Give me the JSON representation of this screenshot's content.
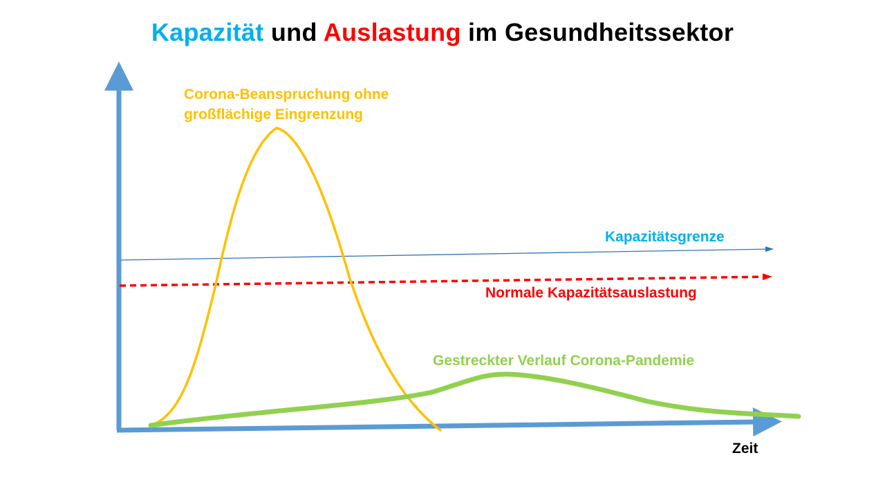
{
  "title": {
    "part1": "Kapazität",
    "part2": "und",
    "part3": "Auslastung",
    "part4": "im Gesundheitssektor"
  },
  "labels": {
    "corona_line1": "Corona-Beanspruchung ohne",
    "corona_line2": "großflächige Eingrenzung",
    "capacity_limit": "Kapazitätsgrenze",
    "normal_usage": "Normale Kapazitätsauslastung",
    "stretched": "Gestreckter Verlauf Corona-Pandemie",
    "x_axis": "Zeit"
  },
  "colors": {
    "axis": "#5b9bd5",
    "title_blue": "#00b0f0",
    "title_red": "#ff0000",
    "title_black": "#000000",
    "yellow_curve": "#ffc000",
    "red_dashed": "#ff0000",
    "capacity_line": "#2e75b6",
    "capacity_text": "#00b0f0",
    "green_curve": "#92d050"
  },
  "chart_data": {
    "type": "line",
    "series": [
      {
        "name": "Corona-Beanspruchung ohne großflächige Eingrenzung",
        "style": "solid",
        "color": "#ffc000"
      },
      {
        "name": "Gestreckter Verlauf Corona-Pandemie",
        "style": "solid-thick",
        "color": "#92d050"
      },
      {
        "name": "Kapazitätsgrenze",
        "style": "thin-arrow",
        "color": "#2e75b6"
      },
      {
        "name": "Normale Kapazitätsauslastung",
        "style": "dashed-arrow",
        "color": "#ff0000"
      }
    ],
    "xlabel": "Zeit",
    "ylabel": "",
    "grid": false
  }
}
